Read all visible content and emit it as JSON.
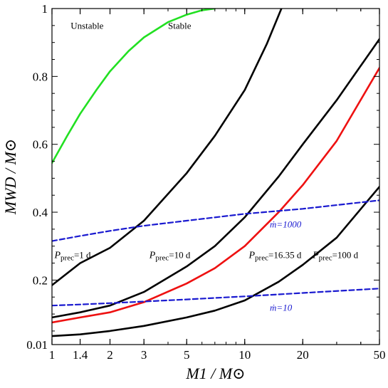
{
  "chart_data": {
    "type": "line",
    "xlabel": "M1 / M⊙",
    "ylabel": "MWD / M⊙",
    "xscale": "log",
    "xlim": [
      1,
      50
    ],
    "ylim": [
      0.01,
      1
    ],
    "grid": false,
    "x_ticks": [
      {
        "value": 1,
        "label": "1"
      },
      {
        "value": 1.4,
        "label": "1.4"
      },
      {
        "value": 2,
        "label": "2"
      },
      {
        "value": 3,
        "label": "3"
      },
      {
        "value": 5,
        "label": "5"
      },
      {
        "value": 10,
        "label": "10"
      },
      {
        "value": 20,
        "label": "20"
      },
      {
        "value": 50,
        "label": "50"
      }
    ],
    "y_ticks": [
      {
        "value": 0.01,
        "label": "0.01"
      },
      {
        "value": 0.2,
        "label": "0.2"
      },
      {
        "value": 0.4,
        "label": "0.4"
      },
      {
        "value": 0.6,
        "label": "0.6"
      },
      {
        "value": 0.8,
        "label": "0.8"
      },
      {
        "value": 1.0,
        "label": "1"
      }
    ],
    "series": [
      {
        "color": "#22e022",
        "style": "solid",
        "x": [
          1,
          1.2,
          1.4,
          1.7,
          2,
          2.5,
          3,
          4,
          5,
          6,
          7
        ],
        "y": [
          0.545,
          0.625,
          0.69,
          0.76,
          0.815,
          0.875,
          0.915,
          0.96,
          0.982,
          0.995,
          1.0
        ]
      },
      {
        "color": "#000000",
        "style": "solid",
        "x": [
          1,
          1.4,
          2,
          3,
          5,
          7,
          10,
          13,
          15.5
        ],
        "y": [
          0.185,
          0.25,
          0.295,
          0.375,
          0.515,
          0.625,
          0.76,
          0.895,
          1.0
        ]
      },
      {
        "color": "#000000",
        "style": "solid",
        "x": [
          1,
          1.4,
          2,
          3,
          5,
          7,
          10,
          15,
          20,
          30,
          50
        ],
        "y": [
          0.09,
          0.105,
          0.125,
          0.165,
          0.24,
          0.3,
          0.385,
          0.505,
          0.6,
          0.73,
          0.91
        ]
      },
      {
        "color": "#ee1111",
        "style": "solid",
        "x": [
          1,
          1.4,
          2,
          3,
          5,
          7,
          10,
          15,
          20,
          30,
          50
        ],
        "y": [
          0.075,
          0.09,
          0.105,
          0.135,
          0.19,
          0.235,
          0.3,
          0.4,
          0.48,
          0.61,
          0.825
        ]
      },
      {
        "color": "#000000",
        "style": "solid",
        "x": [
          1,
          1.4,
          2,
          3,
          5,
          7,
          10,
          15,
          20,
          30,
          50
        ],
        "y": [
          0.035,
          0.04,
          0.05,
          0.065,
          0.09,
          0.11,
          0.14,
          0.195,
          0.245,
          0.325,
          0.475
        ]
      },
      {
        "color": "#1a1ad0",
        "style": "dashed",
        "x": [
          1,
          1.4,
          2,
          3,
          5,
          10,
          20,
          50
        ],
        "y": [
          0.315,
          0.33,
          0.345,
          0.36,
          0.375,
          0.395,
          0.41,
          0.435
        ]
      },
      {
        "color": "#1a1ad0",
        "style": "dashed",
        "x": [
          1,
          1.4,
          2,
          3,
          5,
          10,
          20,
          50
        ],
        "y": [
          0.125,
          0.128,
          0.132,
          0.137,
          0.143,
          0.152,
          0.162,
          0.175
        ]
      }
    ],
    "annotations": [
      {
        "text": "Unstable",
        "x": 1.25,
        "y": 0.94,
        "color": "#000000"
      },
      {
        "text": "Stable",
        "x": 4.0,
        "y": 0.94,
        "color": "#000000"
      },
      {
        "sub": "prec",
        "rest": "=1 d",
        "x": 1.03,
        "y": 0.265,
        "color": "#000000"
      },
      {
        "sub": "prec",
        "rest": "=10 d",
        "x": 3.2,
        "y": 0.265,
        "color": "#000000"
      },
      {
        "sub": "prec",
        "rest": "=16.35 d",
        "x": 10.5,
        "y": 0.265,
        "color": "#000000"
      },
      {
        "sub": "prec",
        "rest": "=100 d",
        "x": 22.5,
        "y": 0.265,
        "color": "#000000"
      },
      {
        "text": "ṁ=1000",
        "x": 13.5,
        "y": 0.355,
        "color": "#1a1ad0"
      },
      {
        "text": "ṁ=10",
        "x": 13.5,
        "y": 0.11,
        "color": "#1a1ad0"
      }
    ]
  }
}
